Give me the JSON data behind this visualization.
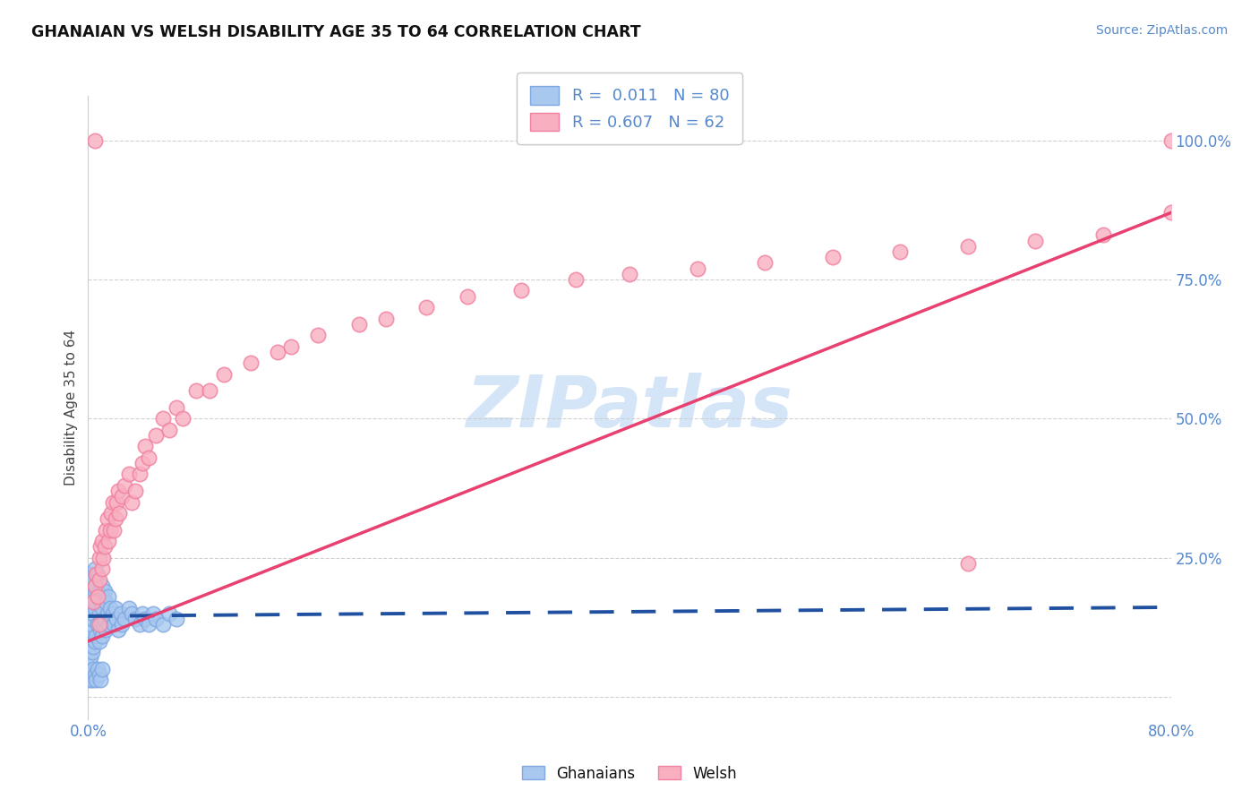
{
  "title": "GHANAIAN VS WELSH DISABILITY AGE 35 TO 64 CORRELATION CHART",
  "source_text": "Source: ZipAtlas.com",
  "ylabel": "Disability Age 35 to 64",
  "ghanaian_color": "#A8C8F0",
  "ghanaian_edge": "#80A8E0",
  "welsh_color": "#F8B0C0",
  "welsh_edge": "#F080A0",
  "ghanaian_trend_color": "#2050A0",
  "welsh_trend_color": "#E84070",
  "watermark_color": "#D5E5F8",
  "background_color": "#FFFFFF",
  "grid_color": "#CCCCCC",
  "title_color": "#111111",
  "axis_color": "#5588CC",
  "xmin": 0.0,
  "xmax": 0.8,
  "ymin": -0.04,
  "ymax": 1.08,
  "gh_x": [
    0.0,
    0.0,
    0.0,
    0.0,
    0.001,
    0.001,
    0.001,
    0.001,
    0.001,
    0.002,
    0.002,
    0.002,
    0.002,
    0.003,
    0.003,
    0.003,
    0.003,
    0.004,
    0.004,
    0.004,
    0.004,
    0.005,
    0.005,
    0.005,
    0.005,
    0.006,
    0.006,
    0.006,
    0.007,
    0.007,
    0.007,
    0.008,
    0.008,
    0.008,
    0.009,
    0.009,
    0.01,
    0.01,
    0.01,
    0.011,
    0.011,
    0.012,
    0.012,
    0.013,
    0.013,
    0.014,
    0.015,
    0.015,
    0.016,
    0.017,
    0.018,
    0.019,
    0.02,
    0.021,
    0.022,
    0.024,
    0.025,
    0.027,
    0.03,
    0.032,
    0.035,
    0.038,
    0.04,
    0.042,
    0.045,
    0.048,
    0.05,
    0.055,
    0.06,
    0.065,
    0.001,
    0.002,
    0.003,
    0.004,
    0.005,
    0.006,
    0.007,
    0.008,
    0.009,
    0.01
  ],
  "gh_y": [
    0.14,
    0.1,
    0.08,
    0.05,
    0.22,
    0.18,
    0.15,
    0.12,
    0.06,
    0.2,
    0.16,
    0.13,
    0.07,
    0.19,
    0.17,
    0.14,
    0.08,
    0.21,
    0.18,
    0.15,
    0.09,
    0.23,
    0.19,
    0.16,
    0.1,
    0.2,
    0.17,
    0.11,
    0.22,
    0.18,
    0.13,
    0.19,
    0.15,
    0.1,
    0.17,
    0.12,
    0.2,
    0.16,
    0.11,
    0.18,
    0.13,
    0.19,
    0.14,
    0.17,
    0.12,
    0.15,
    0.18,
    0.13,
    0.16,
    0.14,
    0.15,
    0.13,
    0.16,
    0.14,
    0.12,
    0.15,
    0.13,
    0.14,
    0.16,
    0.15,
    0.14,
    0.13,
    0.15,
    0.14,
    0.13,
    0.15,
    0.14,
    0.13,
    0.15,
    0.14,
    0.03,
    0.04,
    0.03,
    0.05,
    0.04,
    0.03,
    0.05,
    0.04,
    0.03,
    0.05
  ],
  "wl_x": [
    0.004,
    0.005,
    0.006,
    0.007,
    0.008,
    0.008,
    0.009,
    0.01,
    0.01,
    0.011,
    0.012,
    0.013,
    0.014,
    0.015,
    0.016,
    0.017,
    0.018,
    0.019,
    0.02,
    0.021,
    0.022,
    0.023,
    0.025,
    0.027,
    0.03,
    0.032,
    0.035,
    0.038,
    0.04,
    0.042,
    0.045,
    0.05,
    0.055,
    0.06,
    0.065,
    0.07,
    0.08,
    0.09,
    0.1,
    0.12,
    0.14,
    0.15,
    0.17,
    0.2,
    0.22,
    0.25,
    0.28,
    0.32,
    0.36,
    0.4,
    0.45,
    0.5,
    0.55,
    0.6,
    0.65,
    0.65,
    0.7,
    0.75,
    0.8,
    0.8,
    0.005,
    0.008
  ],
  "wl_y": [
    0.17,
    0.2,
    0.22,
    0.18,
    0.21,
    0.25,
    0.27,
    0.23,
    0.28,
    0.25,
    0.27,
    0.3,
    0.32,
    0.28,
    0.3,
    0.33,
    0.35,
    0.3,
    0.32,
    0.35,
    0.37,
    0.33,
    0.36,
    0.38,
    0.4,
    0.35,
    0.37,
    0.4,
    0.42,
    0.45,
    0.43,
    0.47,
    0.5,
    0.48,
    0.52,
    0.5,
    0.55,
    0.55,
    0.58,
    0.6,
    0.62,
    0.63,
    0.65,
    0.67,
    0.68,
    0.7,
    0.72,
    0.73,
    0.75,
    0.76,
    0.77,
    0.78,
    0.79,
    0.8,
    0.24,
    0.81,
    0.82,
    0.83,
    0.87,
    1.0,
    1.0,
    0.13
  ]
}
